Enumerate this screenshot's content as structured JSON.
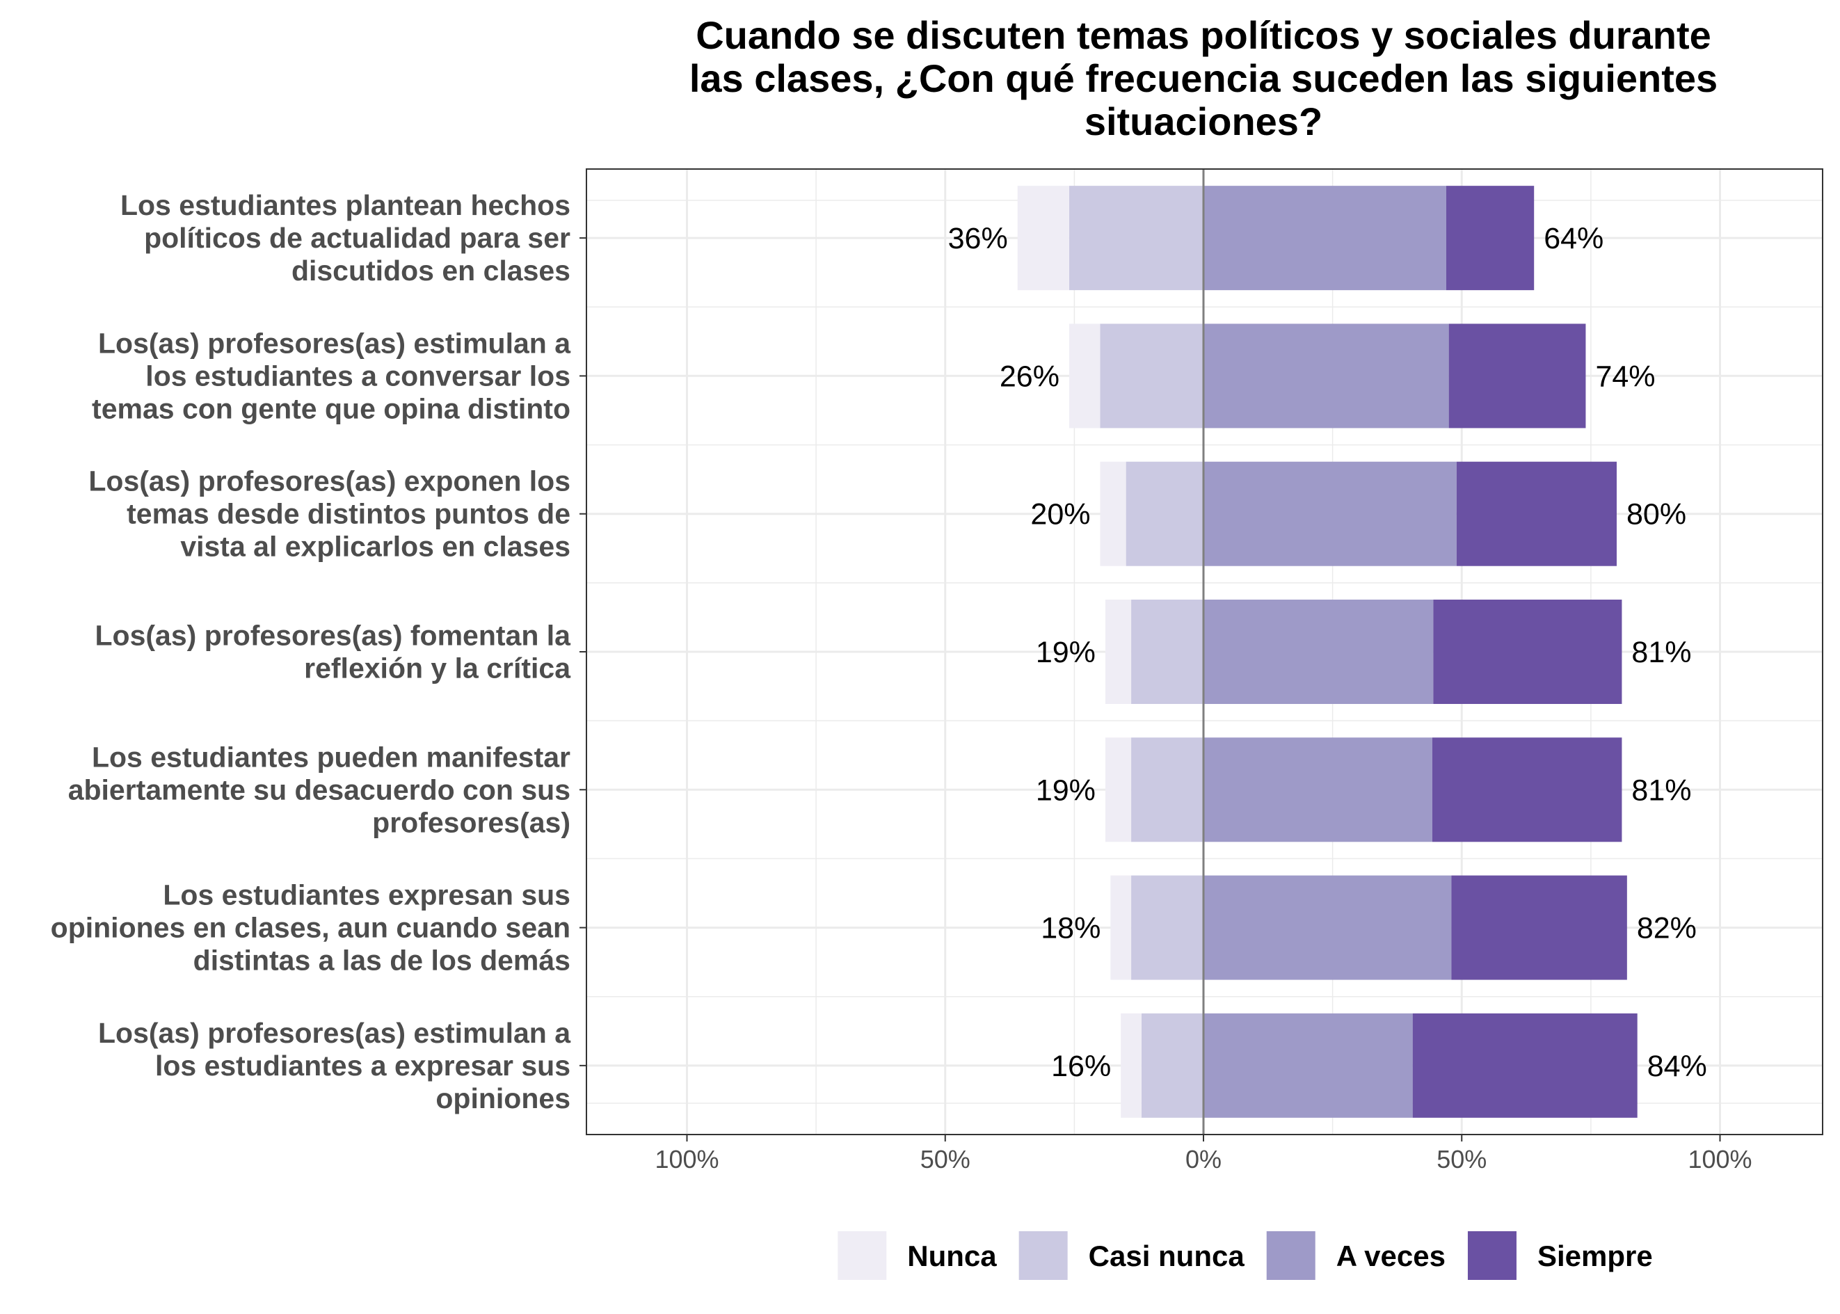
{
  "chart_data": {
    "type": "bar",
    "orientation": "horizontal-diverging",
    "title": "Cuando se discuten temas políticos y sociales durante las clases, ¿Con qué frecuencia suceden las siguientes situaciones?",
    "title_lines": [
      "Cuando se discuten temas políticos y sociales durante",
      "las clases, ¿Con qué frecuencia suceden las siguientes",
      "situaciones?"
    ],
    "xlabel": "",
    "ylabel": "",
    "xlim": [
      -100,
      100
    ],
    "x_ticks": [
      -100,
      -50,
      0,
      50,
      100
    ],
    "x_tick_labels": [
      "100%",
      "50%",
      "0%",
      "50%",
      "100%"
    ],
    "grid": true,
    "legend_position": "bottom",
    "colors": {
      "Nunca": "#efedf5",
      "Casi nunca": "#cbc9e2",
      "A veces": "#9e9ac8",
      "Siempre": "#6a51a3",
      "zero_line": "#7f7f7f",
      "grid": "#ebebeb"
    },
    "categories": [
      {
        "label_lines": [
          "Los estudiantes plantean hechos",
          "políticos de actualidad para ser",
          "discutidos en clases"
        ],
        "negative_label": "36%",
        "positive_label": "64%"
      },
      {
        "label_lines": [
          "Los(as) profesores(as) estimulan a",
          "los estudiantes a conversar los",
          "temas con gente que opina distinto"
        ],
        "negative_label": "26%",
        "positive_label": "74%"
      },
      {
        "label_lines": [
          "Los(as) profesores(as) exponen los",
          "temas desde distintos puntos de",
          "vista al explicarlos en clases"
        ],
        "negative_label": "20%",
        "positive_label": "80%"
      },
      {
        "label_lines": [
          "Los(as) profesores(as) fomentan la",
          "reflexión y la crítica"
        ],
        "negative_label": "19%",
        "positive_label": "81%"
      },
      {
        "label_lines": [
          "Los estudiantes pueden manifestar",
          "abiertamente su desacuerdo con sus",
          "profesores(as)"
        ],
        "negative_label": "19%",
        "positive_label": "81%"
      },
      {
        "label_lines": [
          "Los estudiantes expresan sus",
          "opiniones en clases, aun cuando sean",
          "distintas a las de los demás"
        ],
        "negative_label": "18%",
        "positive_label": "82%"
      },
      {
        "label_lines": [
          "Los(as) profesores(as) estimulan a",
          "los estudiantes a expresar sus",
          "opiniones"
        ],
        "negative_label": "16%",
        "positive_label": "84%"
      }
    ],
    "series": [
      {
        "name": "Nunca",
        "side": "negative",
        "values": [
          10,
          6,
          5,
          5,
          5,
          4,
          4
        ]
      },
      {
        "name": "Casi nunca",
        "side": "negative",
        "values": [
          26,
          20,
          15,
          14,
          14,
          14,
          12
        ]
      },
      {
        "name": "A veces",
        "side": "positive",
        "values": [
          47,
          47.5,
          49,
          44.5,
          44.3,
          48,
          40.5
        ]
      },
      {
        "name": "Siempre",
        "side": "positive",
        "values": [
          17,
          26.5,
          31,
          36.5,
          36.7,
          34,
          43.5
        ]
      }
    ]
  }
}
